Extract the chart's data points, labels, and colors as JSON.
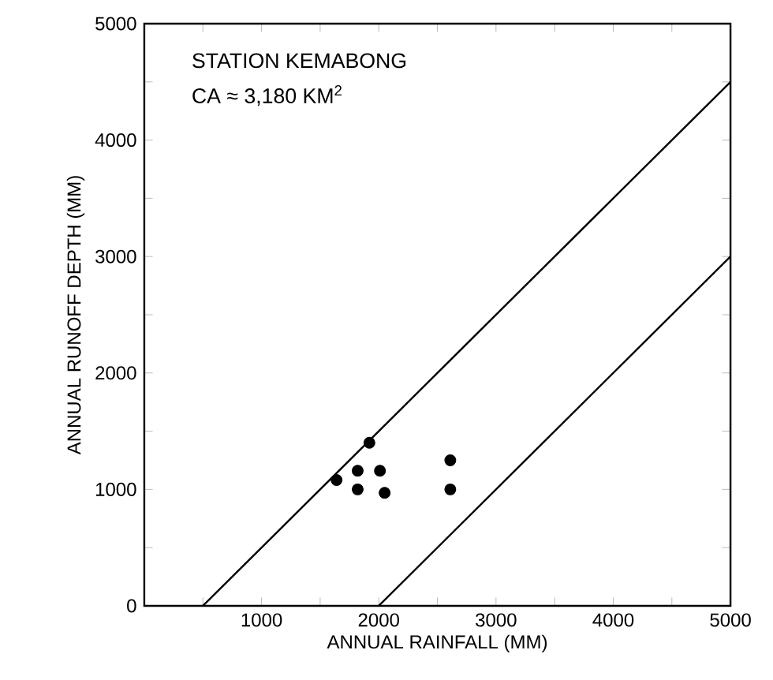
{
  "chart_data": {
    "type": "scatter",
    "xlabel": "ANNUAL RAINFALL (MM)",
    "ylabel": "ANNUAL RUNOFF DEPTH (MM)",
    "annotations": [
      "STATION KEMABONG",
      "CA ≈ 3,180 KM$^{2}$"
    ],
    "xlim": [
      0,
      5000
    ],
    "ylim": [
      0,
      5000
    ],
    "xticks": [
      {
        "value": 0,
        "label": null
      },
      {
        "value": 500,
        "label": null
      },
      1000,
      {
        "value": 1500,
        "label": null
      },
      2000,
      {
        "value": 2500,
        "label": null
      },
      3000,
      {
        "value": 3500,
        "label": null
      },
      4000,
      {
        "value": 4500,
        "label": null
      },
      5000
    ],
    "yticks": [
      0,
      {
        "value": 500,
        "label": null
      },
      1000,
      {
        "value": 1500,
        "label": null
      },
      2000,
      {
        "value": 2500,
        "label": null
      },
      3000,
      {
        "value": 3500,
        "label": null
      },
      4000,
      {
        "value": 4500,
        "label": null
      },
      5000
    ],
    "grid": false,
    "series": [
      {
        "marker": "circle",
        "color": "#000000",
        "x": [
          1640,
          1920,
          1820,
          1820,
          2010,
          2050,
          2610,
          2610
        ],
        "values": [
          1080,
          1400,
          1160,
          1000,
          1160,
          970,
          1250,
          1000
        ]
      },
      {
        "type": "line",
        "marker": "none",
        "color": "#000000",
        "x": [
          500,
          5000
        ],
        "values": [
          0,
          4500
        ]
      },
      {
        "type": "line",
        "marker": "none",
        "color": "#000000",
        "x": [
          2000,
          5000
        ],
        "values": [
          0,
          3000
        ]
      }
    ]
  }
}
